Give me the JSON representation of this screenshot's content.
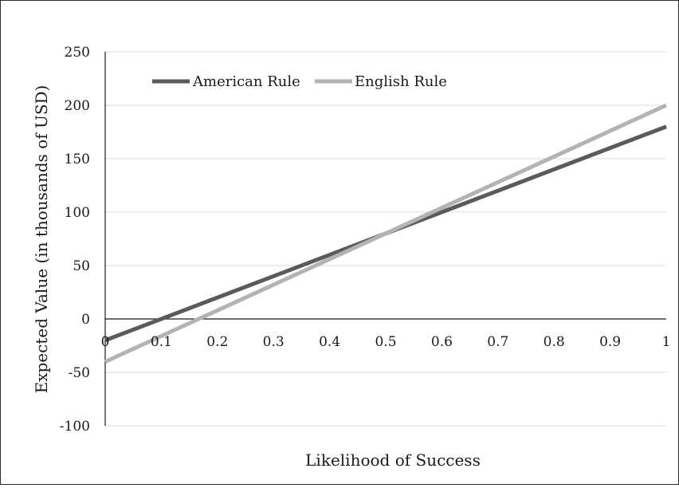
{
  "chart_data": {
    "type": "line",
    "title": "",
    "xlabel": "Likelihood of Success",
    "ylabel": "Expected Value (in thousands of USD)",
    "xlim": [
      0,
      1
    ],
    "ylim": [
      -100,
      250
    ],
    "x_ticks": [
      "0",
      "0.1",
      "0.2",
      "0.3",
      "0.4",
      "0.5",
      "0.6",
      "0.7",
      "0.8",
      "0.9",
      "1"
    ],
    "y_ticks": [
      "250",
      "200",
      "150",
      "100",
      "50",
      "0",
      "-50",
      "-100"
    ],
    "grid": "horizontal",
    "legend_position": "top-left",
    "series": [
      {
        "name": "American Rule",
        "color": "#5a5a5a",
        "x": [
          0,
          1
        ],
        "y": [
          -20,
          180
        ]
      },
      {
        "name": "English Rule",
        "color": "#b3b3b3",
        "x": [
          0,
          1
        ],
        "y": [
          -40,
          200
        ]
      }
    ]
  }
}
